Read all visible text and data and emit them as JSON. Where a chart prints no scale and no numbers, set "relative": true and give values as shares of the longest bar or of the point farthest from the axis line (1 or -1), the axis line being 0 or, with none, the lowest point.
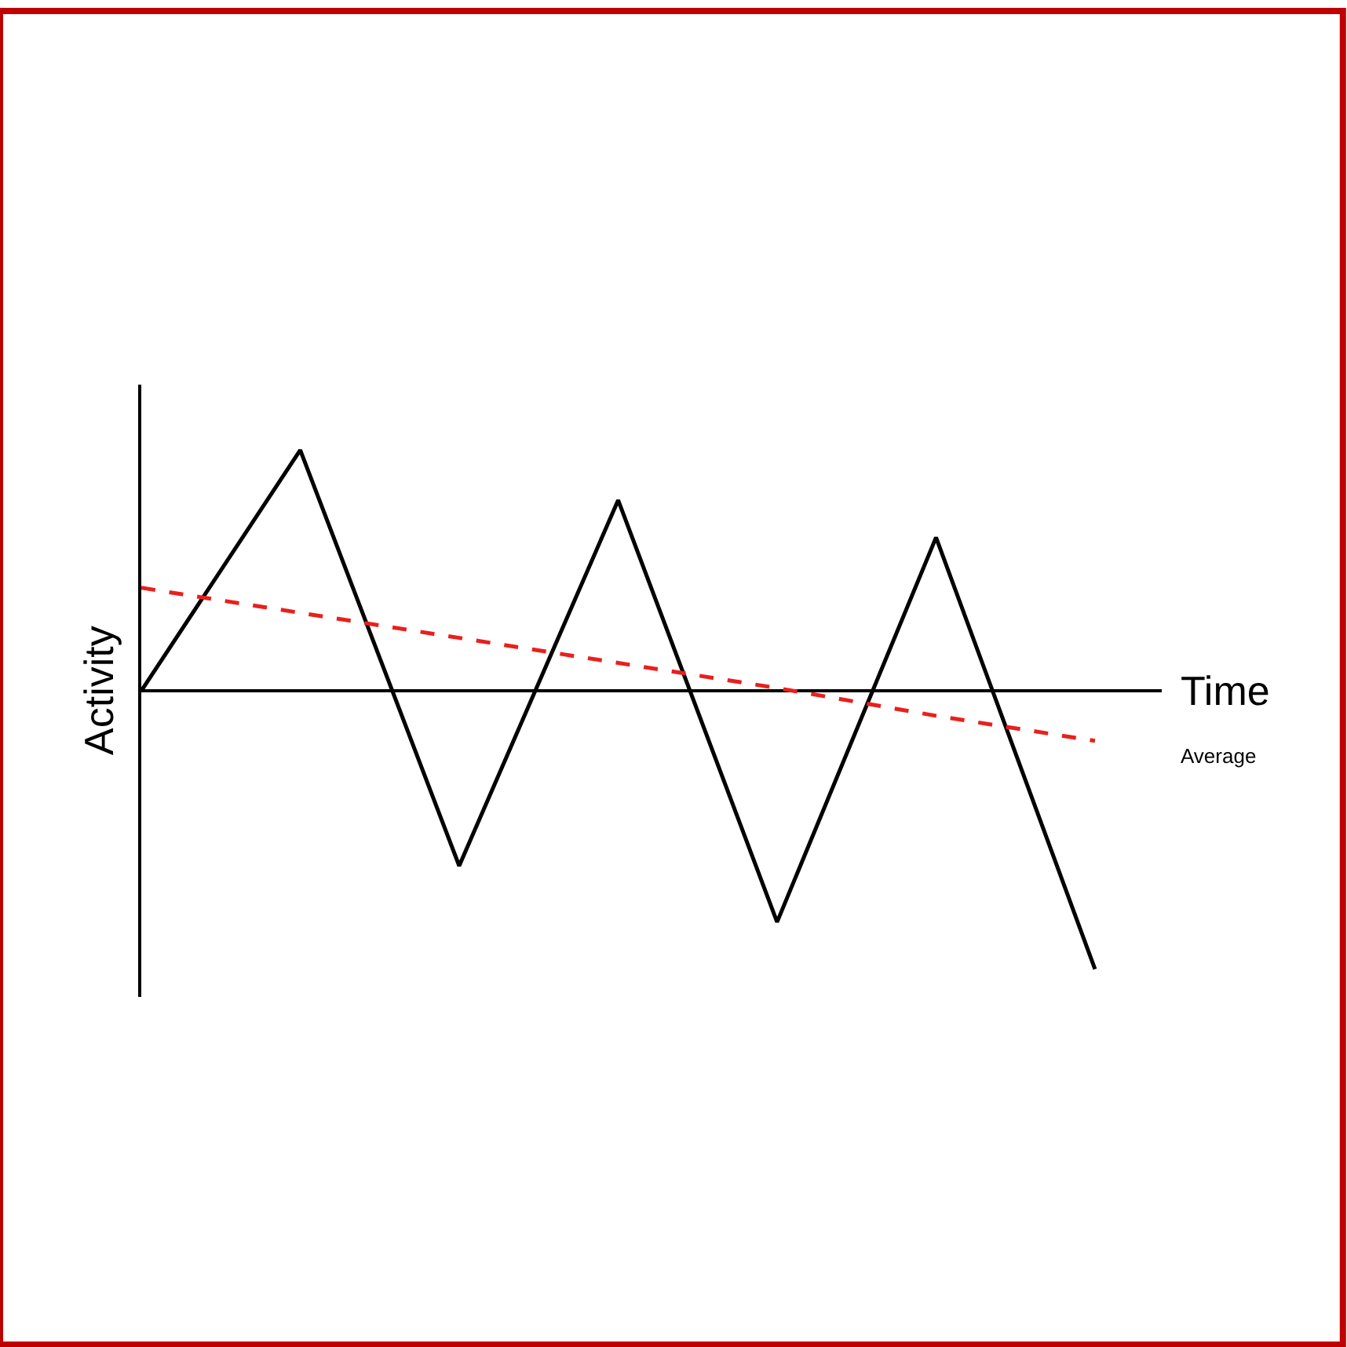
{
  "chart_data": {
    "type": "line",
    "xlabel": "Time",
    "ylabel": "Activity",
    "relative": true,
    "tick_labels": false,
    "legend": false,
    "categories": [
      null,
      null,
      null,
      null,
      null,
      null,
      null
    ],
    "series": [
      {
        "color": "#000000",
        "values": [
          0,
          0.865,
          -0.629,
          0.685,
          -0.831,
          0.551,
          -1
        ],
        "line_style": "solid"
      },
      {
        "name": "Average",
        "color": "#e8201c",
        "values": [
          0.37,
          0.28,
          0.19,
          0.1,
          0.01,
          -0.09,
          -0.18
        ],
        "line_style": "dashed"
      }
    ]
  }
}
